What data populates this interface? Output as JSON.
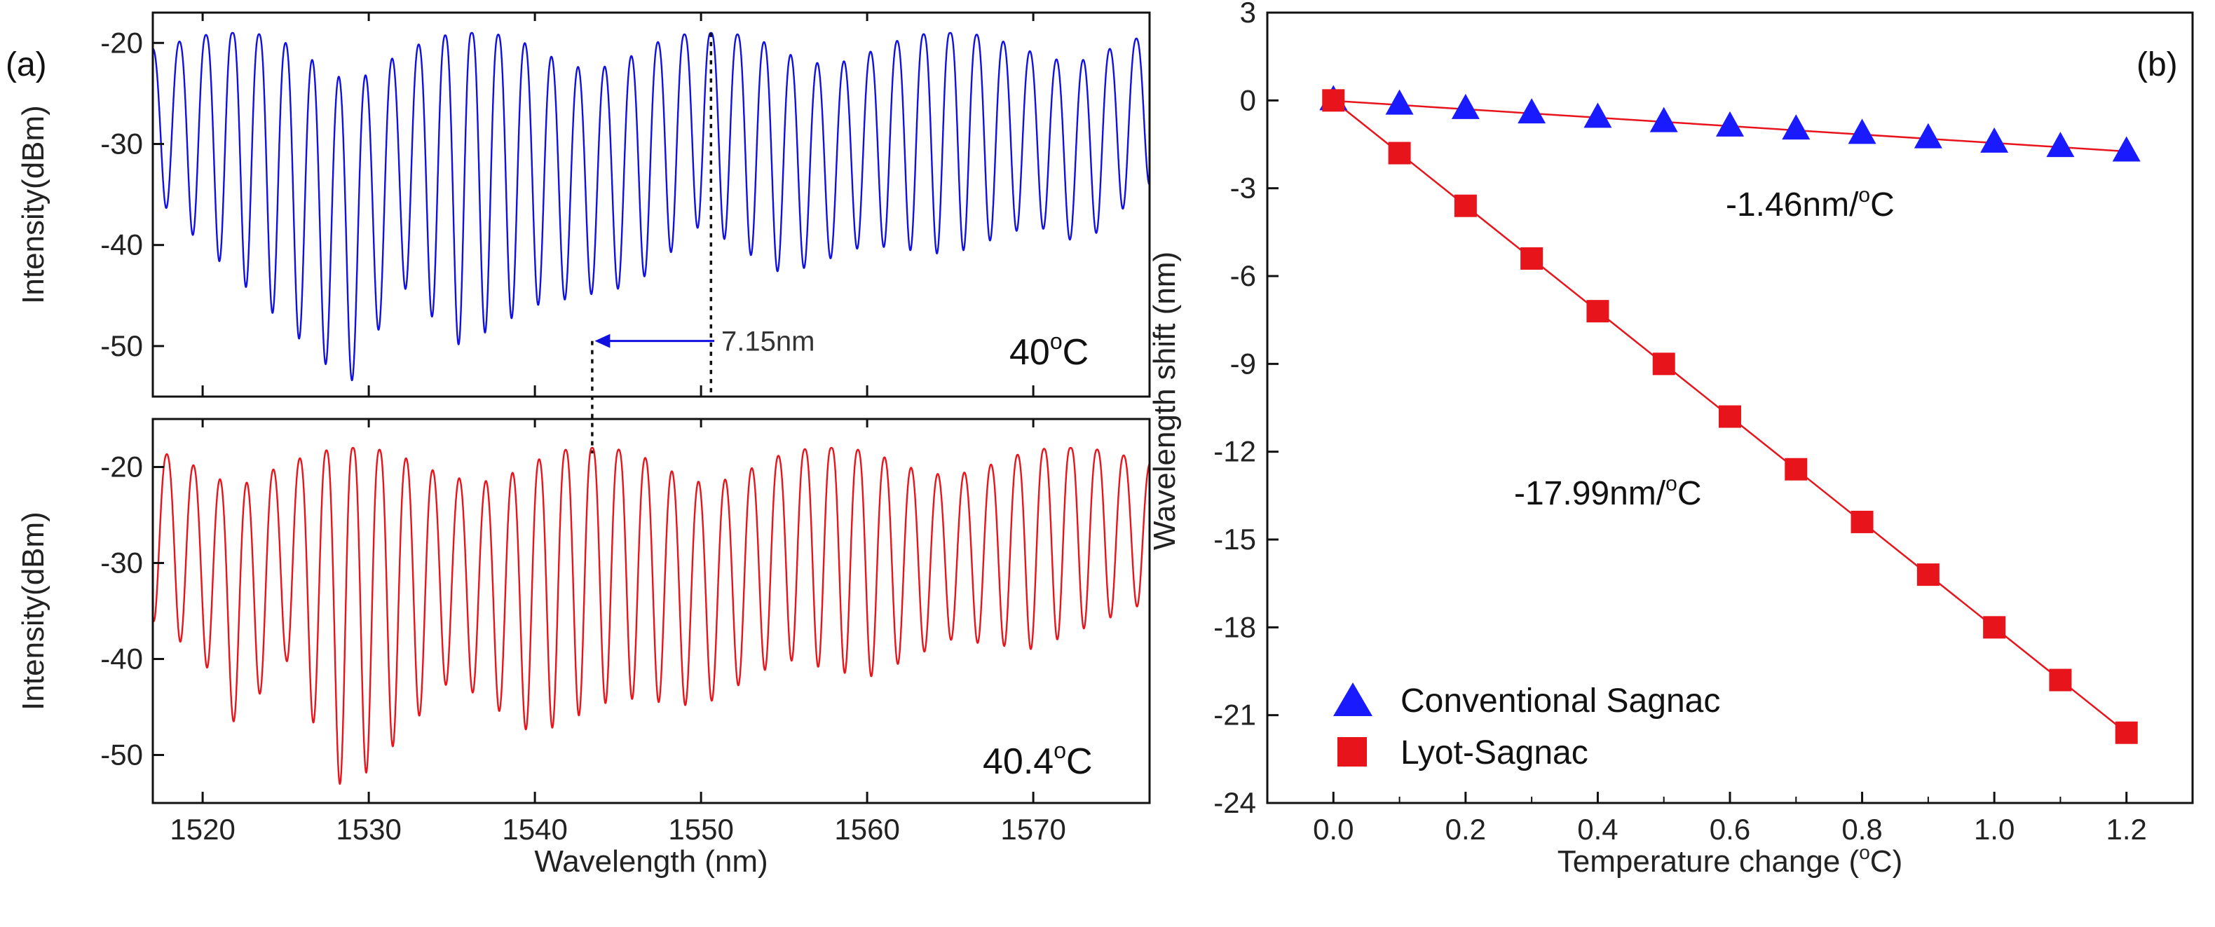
{
  "chart_data": [
    {
      "type": "line",
      "panel": "a-top",
      "panel_label": "(a)",
      "title": "",
      "xlabel": "",
      "ylabel": "Intensity(dBm)",
      "xlim": [
        1517,
        1577
      ],
      "ylim": [
        -55,
        -17
      ],
      "x_ticks": [
        1520,
        1530,
        1540,
        1550,
        1560,
        1570
      ],
      "y_ticks": [
        -20,
        -30,
        -40,
        -50
      ],
      "y_tick_labels": [
        "-20",
        "-30",
        "-40",
        "-50"
      ],
      "series": [
        {
          "name": "40°C spectrum",
          "color": "#1010e0",
          "envelope_peak_dBm": -19,
          "fringe_period_nm": 1.6,
          "beat_period_nm": 14.3,
          "phase_center_nm": 1550.6,
          "dip_envelope": {
            "x": [
              1517,
              1520,
              1525,
              1528.8,
              1532,
              1535.5,
              1540,
              1546,
              1550,
              1555,
              1560,
              1565,
              1570,
              1573,
              1577
            ],
            "y": [
              -35,
              -40,
              -48,
              -54,
              -44,
              -50,
              -46,
              -44,
              -38,
              -43,
              -40,
              -41,
              -38,
              -40,
              -34
            ]
          }
        }
      ],
      "annotations": [
        {
          "text": "7.15nm",
          "arrow_from_nm": 1550.8,
          "arrow_to_nm": 1543.6,
          "arrow_y_dBm": -49.5
        },
        {
          "text_prefix": "40",
          "superscript": "o",
          "text_suffix": "C"
        }
      ]
    },
    {
      "type": "line",
      "panel": "a-bottom",
      "title": "",
      "xlabel": "Wavelength (nm)",
      "ylabel": "Intensity(dBm)",
      "xlim": [
        1517,
        1577
      ],
      "ylim": [
        -55,
        -15
      ],
      "x_ticks": [
        1520,
        1530,
        1540,
        1550,
        1560,
        1570
      ],
      "x_tick_labels": [
        "1520",
        "1530",
        "1540",
        "1550",
        "1560",
        "1570"
      ],
      "y_ticks": [
        -20,
        -30,
        -40,
        -50
      ],
      "y_tick_labels": [
        "-20",
        "-30",
        "-40",
        "-50"
      ],
      "series": [
        {
          "name": "40.4°C spectrum",
          "color": "#e8141c",
          "envelope_peak_dBm": -18,
          "fringe_period_nm": 1.6,
          "beat_period_nm": 14.3,
          "phase_center_nm": 1543.45,
          "dip_envelope": {
            "x": [
              1517,
              1520,
              1522,
              1525,
              1528.5,
              1531,
              1535,
              1540,
              1545,
              1550,
              1555,
              1560,
              1565,
              1570,
              1577
            ],
            "y": [
              -36,
              -40,
              -47,
              -40,
              -54,
              -50,
              -42,
              -48,
              -44,
              -45,
              -40,
              -42,
              -38,
              -39,
              -34
            ]
          }
        }
      ],
      "annotations": [
        {
          "text_prefix": "40.4",
          "superscript": "o",
          "text_suffix": "C"
        }
      ]
    },
    {
      "type": "scatter",
      "panel": "b",
      "panel_label": "(b)",
      "title": "",
      "xlabel_prefix": "Temperature change (",
      "xlabel_superscript": "o",
      "xlabel_suffix": "C)",
      "ylabel": "Wavelength shift (nm)",
      "xlim": [
        -0.1,
        1.3
      ],
      "ylim": [
        -24,
        3
      ],
      "x_ticks": [
        0.0,
        0.2,
        0.4,
        0.6,
        0.8,
        1.0,
        1.2
      ],
      "x_tick_labels": [
        "0.0",
        "0.2",
        "0.4",
        "0.6",
        "0.8",
        "1.0",
        "1.2"
      ],
      "y_ticks": [
        3,
        0,
        -3,
        -6,
        -9,
        -12,
        -15,
        -18,
        -21,
        -24
      ],
      "y_tick_labels": [
        "3",
        "0",
        "-3",
        "-6",
        "-9",
        "-12",
        "-15",
        "-18",
        "-21",
        "-24"
      ],
      "fit_color": "#e8141c",
      "series": [
        {
          "name": "Conventional Sagnac",
          "marker": "triangle",
          "color": "#1a1aff",
          "x": [
            0.0,
            0.1,
            0.2,
            0.3,
            0.4,
            0.5,
            0.6,
            0.7,
            0.8,
            0.9,
            1.0,
            1.1,
            1.2
          ],
          "y": [
            0.0,
            -0.15,
            -0.3,
            -0.45,
            -0.6,
            -0.75,
            -0.9,
            -1.0,
            -1.15,
            -1.3,
            -1.45,
            -1.6,
            -1.75
          ]
        },
        {
          "name": "Lyot-Sagnac",
          "marker": "square",
          "color": "#e8141c",
          "x": [
            0.0,
            0.1,
            0.2,
            0.3,
            0.4,
            0.5,
            0.6,
            0.7,
            0.8,
            0.9,
            1.0,
            1.1,
            1.2
          ],
          "y": [
            0.0,
            -1.8,
            -3.6,
            -5.4,
            -7.2,
            -9.0,
            -10.8,
            -12.6,
            -14.4,
            -16.2,
            -18.0,
            -19.8,
            -21.6
          ]
        }
      ],
      "annotations": [
        {
          "for": "Conventional Sagnac",
          "text_prefix": "-1.46nm/",
          "superscript": "o",
          "text_suffix": "C"
        },
        {
          "for": "Lyot-Sagnac",
          "text_prefix": "-17.99nm/",
          "superscript": "o",
          "text_suffix": "C"
        }
      ],
      "legend": [
        "Conventional Sagnac",
        "Lyot-Sagnac"
      ],
      "legend_position": "bottom-left"
    }
  ]
}
